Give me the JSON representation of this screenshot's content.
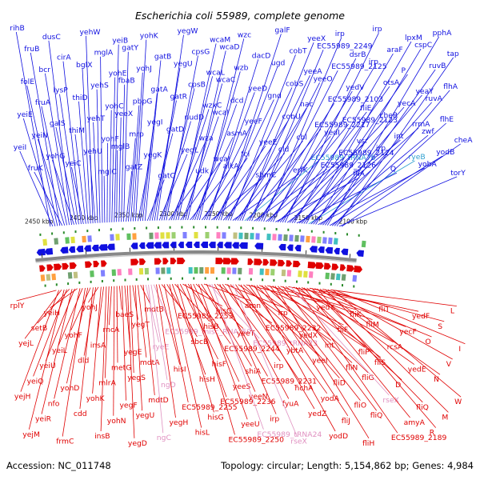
{
  "title": "Escherichia coli 55989, complete genome",
  "footer": {
    "accession": "Accession: NC_011748",
    "summary": "Topology: circular; Length: 5,154,862 bp; Genes: 4,984"
  },
  "colors": {
    "plus_strand": "#1010e0",
    "minus_strand": "#e00000",
    "rna": "#e090c0",
    "trna_plus": "#30a0d0",
    "backbone": "#888888"
  },
  "ticks": [
    "2100 kbp",
    "2150 kbp",
    "2200 kbp",
    "2250 kbp",
    "2300 kbp",
    "2350 kbp",
    "2400 kbp",
    "2450 kbp"
  ],
  "plus_labels": [
    {
      "text": "rihB",
      "type": "gene"
    },
    {
      "text": "yeiI",
      "type": "gene"
    },
    {
      "text": "yeiE",
      "type": "gene"
    },
    {
      "text": "folE",
      "type": "gene"
    },
    {
      "text": "fruB",
      "type": "gene"
    },
    {
      "text": "fruK",
      "type": "gene"
    },
    {
      "text": "yeiN",
      "type": "gene"
    },
    {
      "text": "fruA",
      "type": "gene"
    },
    {
      "text": "bcr",
      "type": "gene"
    },
    {
      "text": "dusC",
      "type": "gene"
    },
    {
      "text": "yohG",
      "type": "gene"
    },
    {
      "text": "galS",
      "type": "gene"
    },
    {
      "text": "lysP",
      "type": "gene"
    },
    {
      "text": "cirA",
      "type": "gene"
    },
    {
      "text": "yeiC",
      "type": "gene"
    },
    {
      "text": "thiM",
      "type": "gene"
    },
    {
      "text": "thiD",
      "type": "gene"
    },
    {
      "text": "bglX",
      "type": "gene"
    },
    {
      "text": "yehW",
      "type": "gene"
    },
    {
      "text": "yehU",
      "type": "gene"
    },
    {
      "text": "yehT",
      "type": "gene"
    },
    {
      "text": "yehS",
      "type": "gene"
    },
    {
      "text": "mglA",
      "type": "gene"
    },
    {
      "text": "mglC",
      "type": "gene"
    },
    {
      "text": "yohF",
      "type": "gene"
    },
    {
      "text": "yohC",
      "type": "gene"
    },
    {
      "text": "yohE",
      "type": "gene"
    },
    {
      "text": "yeiB",
      "type": "gene"
    },
    {
      "text": "mglB",
      "type": "gene"
    },
    {
      "text": "yeeX",
      "type": "gene"
    },
    {
      "text": "fbaB",
      "type": "gene"
    },
    {
      "text": "gatY",
      "type": "gene"
    },
    {
      "text": "gatZ",
      "type": "gene"
    },
    {
      "text": "mrp",
      "type": "gene"
    },
    {
      "text": "pbpG",
      "type": "gene"
    },
    {
      "text": "yohJ",
      "type": "gene"
    },
    {
      "text": "yohK",
      "type": "gene"
    },
    {
      "text": "yegK",
      "type": "gene"
    },
    {
      "text": "yegI",
      "type": "gene"
    },
    {
      "text": "gatA",
      "type": "gene"
    },
    {
      "text": "gatB",
      "type": "gene"
    },
    {
      "text": "gatC",
      "type": "gene"
    },
    {
      "text": "gatD",
      "type": "gene"
    },
    {
      "text": "gatR",
      "type": "gene"
    },
    {
      "text": "yegU",
      "type": "gene"
    },
    {
      "text": "yegW",
      "type": "gene"
    },
    {
      "text": "yegL",
      "type": "gene"
    },
    {
      "text": "nudD",
      "type": "gene"
    },
    {
      "text": "cpsB",
      "type": "gene"
    },
    {
      "text": "cpsG",
      "type": "gene"
    },
    {
      "text": "udk",
      "type": "gene"
    },
    {
      "text": "wza",
      "type": "gene"
    },
    {
      "text": "wzxC",
      "type": "gene"
    },
    {
      "text": "wcaL",
      "type": "gene"
    },
    {
      "text": "wcaM",
      "type": "gene"
    },
    {
      "text": "wcaJ",
      "type": "gene"
    },
    {
      "text": "wcaI",
      "type": "gene"
    },
    {
      "text": "wcaC",
      "type": "gene"
    },
    {
      "text": "wcaD",
      "type": "gene"
    },
    {
      "text": "alkA",
      "type": "gene"
    },
    {
      "text": "asmA",
      "type": "gene"
    },
    {
      "text": "dcd",
      "type": "gene"
    },
    {
      "text": "wzb",
      "type": "gene"
    },
    {
      "text": "wzc",
      "type": "gene"
    },
    {
      "text": "fcl",
      "type": "gene"
    },
    {
      "text": "yeeF",
      "type": "gene"
    },
    {
      "text": "yeeD",
      "type": "gene"
    },
    {
      "text": "dacD",
      "type": "gene"
    },
    {
      "text": "sbmC",
      "type": "gene"
    },
    {
      "text": "yeeE",
      "type": "gene"
    },
    {
      "text": "gnd",
      "type": "gene"
    },
    {
      "text": "ugd",
      "type": "gene"
    },
    {
      "text": "galF",
      "type": "gene"
    },
    {
      "text": "cld",
      "type": "gene"
    },
    {
      "text": "cobU",
      "type": "gene"
    },
    {
      "text": "cobS",
      "type": "gene"
    },
    {
      "text": "cobT",
      "type": "gene"
    },
    {
      "text": "erfK",
      "type": "gene"
    },
    {
      "text": "cbl",
      "type": "gene"
    },
    {
      "text": "nac",
      "type": "gene"
    },
    {
      "text": "yeeA",
      "type": "gene"
    },
    {
      "text": "yeeX",
      "type": "gene"
    },
    {
      "text": "EC55989_tRNA76",
      "type": "trna"
    },
    {
      "text": "EC55989_2217",
      "type": "gene"
    },
    {
      "text": "yeeO",
      "type": "gene"
    },
    {
      "text": "EC55989_2249",
      "type": "gene"
    },
    {
      "text": "EC55989_2126",
      "type": "gene"
    },
    {
      "text": "yedI",
      "type": "gene"
    },
    {
      "text": "EC55989_2103",
      "type": "gene"
    },
    {
      "text": "EC55989_2125",
      "type": "gene"
    },
    {
      "text": "irp",
      "type": "gene"
    },
    {
      "text": "EC55989_2124",
      "type": "gene"
    },
    {
      "text": "EC55989_2123",
      "type": "gene"
    },
    {
      "text": "yedV",
      "type": "gene"
    },
    {
      "text": "dsrB",
      "type": "gene"
    },
    {
      "text": "fliA",
      "type": "gene"
    },
    {
      "text": "vsr",
      "type": "gene"
    },
    {
      "text": "fliE",
      "type": "gene"
    },
    {
      "text": "irp",
      "type": "gene"
    },
    {
      "text": "irp",
      "type": "gene"
    },
    {
      "text": "irp",
      "type": "gene"
    },
    {
      "text": "cheR",
      "type": "gene"
    },
    {
      "text": "otsA",
      "type": "gene"
    },
    {
      "text": "araF",
      "type": "gene"
    },
    {
      "text": "Q",
      "type": "gene"
    },
    {
      "text": "int",
      "type": "gene"
    },
    {
      "text": "yecA",
      "type": "gene"
    },
    {
      "text": "P",
      "type": "gene"
    },
    {
      "text": "lpxM",
      "type": "gene"
    },
    {
      "text": "ryeB",
      "type": "rna_plus"
    },
    {
      "text": "rrmA",
      "type": "gene"
    },
    {
      "text": "yeaY",
      "type": "gene"
    },
    {
      "text": "cspC",
      "type": "gene"
    },
    {
      "text": "yobA",
      "type": "gene"
    },
    {
      "text": "zwf",
      "type": "gene"
    },
    {
      "text": "ruvA",
      "type": "gene"
    },
    {
      "text": "ruvB",
      "type": "gene"
    },
    {
      "text": "pphA",
      "type": "gene"
    },
    {
      "text": "yodB",
      "type": "gene"
    },
    {
      "text": "flhE",
      "type": "gene"
    },
    {
      "text": "flhA",
      "type": "gene"
    },
    {
      "text": "tap",
      "type": "gene"
    },
    {
      "text": "torY",
      "type": "gene"
    },
    {
      "text": "cheA",
      "type": "gene"
    }
  ],
  "minus_labels": [
    {
      "text": "rplY",
      "type": "gene"
    },
    {
      "text": "yejH",
      "type": "gene"
    },
    {
      "text": "yejL",
      "type": "gene"
    },
    {
      "text": "yejM",
      "type": "gene"
    },
    {
      "text": "yeiQ",
      "type": "gene"
    },
    {
      "text": "setB",
      "type": "gene"
    },
    {
      "text": "yeiR",
      "type": "gene"
    },
    {
      "text": "yeiU",
      "type": "gene"
    },
    {
      "text": "yeiH",
      "type": "gene"
    },
    {
      "text": "nfo",
      "type": "gene"
    },
    {
      "text": "yeiL",
      "type": "gene"
    },
    {
      "text": "frmC",
      "type": "gene"
    },
    {
      "text": "yohD",
      "type": "gene"
    },
    {
      "text": "yohF",
      "type": "gene"
    },
    {
      "text": "cdd",
      "type": "gene"
    },
    {
      "text": "dld",
      "type": "gene"
    },
    {
      "text": "yohJ",
      "type": "gene"
    },
    {
      "text": "yohK",
      "type": "gene"
    },
    {
      "text": "insA",
      "type": "gene"
    },
    {
      "text": "insB",
      "type": "gene"
    },
    {
      "text": "mlrA",
      "type": "gene"
    },
    {
      "text": "rncA",
      "type": "gene"
    },
    {
      "text": "yohN",
      "type": "gene"
    },
    {
      "text": "metG",
      "type": "gene"
    },
    {
      "text": "baeS",
      "type": "gene"
    },
    {
      "text": "yegF",
      "type": "gene"
    },
    {
      "text": "yegE",
      "type": "gene"
    },
    {
      "text": "yegD",
      "type": "gene"
    },
    {
      "text": "yegS",
      "type": "gene"
    },
    {
      "text": "yegT",
      "type": "gene"
    },
    {
      "text": "yegU",
      "type": "gene"
    },
    {
      "text": "mdtA",
      "type": "gene"
    },
    {
      "text": "mdtB",
      "type": "gene"
    },
    {
      "text": "mdtD",
      "type": "gene"
    },
    {
      "text": "ryeE",
      "type": "rna"
    },
    {
      "text": "ngC",
      "type": "rna"
    },
    {
      "text": "ngD",
      "type": "rna"
    },
    {
      "text": "EC55989_misc_RNA_50",
      "type": "rna"
    },
    {
      "text": "yegH",
      "type": "gene"
    },
    {
      "text": "hisI",
      "type": "gene"
    },
    {
      "text": "EC55989_2253",
      "type": "gene"
    },
    {
      "text": "EC55989_2255",
      "type": "gene"
    },
    {
      "text": "sbcB",
      "type": "gene"
    },
    {
      "text": "hisL",
      "type": "gene"
    },
    {
      "text": "hisH",
      "type": "gene"
    },
    {
      "text": "hisB",
      "type": "gene"
    },
    {
      "text": "hisG",
      "type": "gene"
    },
    {
      "text": "hisF",
      "type": "gene"
    },
    {
      "text": "hisC",
      "type": "gene"
    },
    {
      "text": "EC55989_2236",
      "type": "gene"
    },
    {
      "text": "EC55989_2244",
      "type": "gene"
    },
    {
      "text": "EC55989_2250",
      "type": "gene"
    },
    {
      "text": "yeeS",
      "type": "gene"
    },
    {
      "text": "yeeT",
      "type": "gene"
    },
    {
      "text": "yeeU",
      "type": "gene"
    },
    {
      "text": "shiA",
      "type": "gene"
    },
    {
      "text": "amn",
      "type": "gene"
    },
    {
      "text": "yeeN",
      "type": "gene"
    },
    {
      "text": "EC55989_tRNA23",
      "type": "rna"
    },
    {
      "text": "EC55989_tRNA24",
      "type": "rna"
    },
    {
      "text": "EC55989_2231",
      "type": "gene"
    },
    {
      "text": "EC55989_2232",
      "type": "gene"
    },
    {
      "text": "irp",
      "type": "gene"
    },
    {
      "text": "irp",
      "type": "gene"
    },
    {
      "text": "irp",
      "type": "gene"
    },
    {
      "text": "fyuA",
      "type": "gene"
    },
    {
      "text": "ybtA",
      "type": "gene"
    },
    {
      "text": "rseX",
      "type": "rna"
    },
    {
      "text": "hchA",
      "type": "gene"
    },
    {
      "text": "yedX",
      "type": "gene"
    },
    {
      "text": "yedZ",
      "type": "gene"
    },
    {
      "text": "yeeI",
      "type": "gene"
    },
    {
      "text": "yedY",
      "type": "gene"
    },
    {
      "text": "yodA",
      "type": "gene"
    },
    {
      "text": "int",
      "type": "gene"
    },
    {
      "text": "yodD",
      "type": "gene"
    },
    {
      "text": "fliD",
      "type": "gene"
    },
    {
      "text": "fliF",
      "type": "gene"
    },
    {
      "text": "fliJ",
      "type": "gene"
    },
    {
      "text": "fliN",
      "type": "gene"
    },
    {
      "text": "fliK",
      "type": "gene"
    },
    {
      "text": "fliO",
      "type": "gene"
    },
    {
      "text": "fliP",
      "type": "gene"
    },
    {
      "text": "fliH",
      "type": "gene"
    },
    {
      "text": "fliG",
      "type": "gene"
    },
    {
      "text": "fliM",
      "type": "gene"
    },
    {
      "text": "fliQ",
      "type": "gene"
    },
    {
      "text": "fliS",
      "type": "gene"
    },
    {
      "text": "fliT",
      "type": "gene"
    },
    {
      "text": "rseX",
      "type": "rna"
    },
    {
      "text": "rcsA",
      "type": "gene"
    },
    {
      "text": "EC55989_2189",
      "type": "gene"
    },
    {
      "text": "D",
      "type": "gene"
    },
    {
      "text": "yecF",
      "type": "gene"
    },
    {
      "text": "amyA",
      "type": "gene"
    },
    {
      "text": "yedE",
      "type": "gene"
    },
    {
      "text": "yedF",
      "type": "gene"
    },
    {
      "text": "fliQ",
      "type": "gene"
    },
    {
      "text": "O",
      "type": "gene"
    },
    {
      "text": "R",
      "type": "gene"
    },
    {
      "text": "N",
      "type": "gene"
    },
    {
      "text": "S",
      "type": "gene"
    },
    {
      "text": "M",
      "type": "gene"
    },
    {
      "text": "V",
      "type": "gene"
    },
    {
      "text": "L",
      "type": "gene"
    },
    {
      "text": "W",
      "type": "gene"
    },
    {
      "text": "I",
      "type": "gene"
    }
  ]
}
